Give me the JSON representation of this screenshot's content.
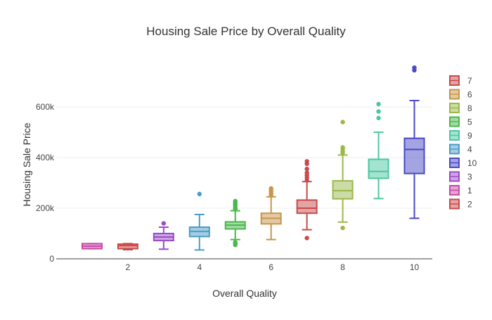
{
  "chart_data": {
    "type": "box",
    "title": "Housing Sale Price by Overall Quality",
    "xlabel": "Overall Quality",
    "ylabel": "Housing Sale Price",
    "xlim": [
      0,
      10.5
    ],
    "ylim": [
      0,
      800000
    ],
    "x_ticks": [
      {
        "value": 2,
        "label": "2"
      },
      {
        "value": 4,
        "label": "4"
      },
      {
        "value": 6,
        "label": "6"
      },
      {
        "value": 8,
        "label": "8"
      },
      {
        "value": 10,
        "label": "10"
      }
    ],
    "y_ticks": [
      {
        "value": 0,
        "label": "0"
      },
      {
        "value": 200000,
        "label": "200k"
      },
      {
        "value": 400000,
        "label": "400k"
      },
      {
        "value": 600000,
        "label": "600k"
      }
    ],
    "legend_position": "right",
    "grid": "horizontal",
    "legend_order": [
      "7",
      "6",
      "8",
      "5",
      "9",
      "4",
      "10",
      "3",
      "1",
      "2"
    ],
    "series": [
      {
        "name": "1",
        "x": 1,
        "color": "#c84aa8",
        "q1": 40000,
        "median": 50000,
        "q3": 60000,
        "lower": 40000,
        "upper": 60000,
        "outliers": []
      },
      {
        "name": "2",
        "x": 2,
        "color": "#c94a4a",
        "q1": 40000,
        "median": 52000,
        "q3": 58000,
        "lower": 36000,
        "upper": 60000,
        "outliers": []
      },
      {
        "name": "3",
        "x": 3,
        "color": "#9b4bc8",
        "q1": 72000,
        "median": 86000,
        "q3": 100000,
        "lower": 38000,
        "upper": 125000,
        "outliers": [
          140000
        ]
      },
      {
        "name": "4",
        "x": 4,
        "color": "#4a9cc8",
        "q1": 88000,
        "median": 108000,
        "q3": 125000,
        "lower": 35000,
        "upper": 175000,
        "outliers": [
          256000
        ]
      },
      {
        "name": "5",
        "x": 5,
        "color": "#4ab84a",
        "q1": 118000,
        "median": 133000,
        "q3": 146000,
        "lower": 76000,
        "upper": 190000,
        "outliers": [
          55000,
          60000,
          65000,
          195000,
          200000,
          208000,
          215000,
          222000,
          228000
        ]
      },
      {
        "name": "6",
        "x": 6,
        "color": "#c8964a",
        "q1": 138000,
        "median": 160000,
        "q3": 180000,
        "lower": 76000,
        "upper": 245000,
        "outliers": [
          250000,
          258000,
          265000,
          272000,
          278000
        ]
      },
      {
        "name": "7",
        "x": 7,
        "color": "#c84a4a",
        "q1": 180000,
        "median": 200000,
        "q3": 232000,
        "lower": 115000,
        "upper": 305000,
        "outliers": [
          82000,
          310000,
          320000,
          330000,
          340000,
          355000,
          375000,
          385000
        ]
      },
      {
        "name": "8",
        "x": 8,
        "color": "#9bb84a",
        "q1": 237000,
        "median": 269000,
        "q3": 308000,
        "lower": 145000,
        "upper": 410000,
        "outliers": [
          122000,
          418000,
          425000,
          435000,
          440000,
          540000
        ]
      },
      {
        "name": "9",
        "x": 9,
        "color": "#4ac8a0",
        "q1": 318000,
        "median": 345000,
        "q3": 393000,
        "lower": 238000,
        "upper": 500000,
        "outliers": [
          556000,
          582000,
          611000
        ]
      },
      {
        "name": "10",
        "x": 10,
        "color": "#4a4ac8",
        "q1": 337000,
        "median": 432000,
        "q3": 476000,
        "lower": 160000,
        "upper": 625000,
        "outliers": [
          745000,
          755000
        ]
      }
    ]
  }
}
